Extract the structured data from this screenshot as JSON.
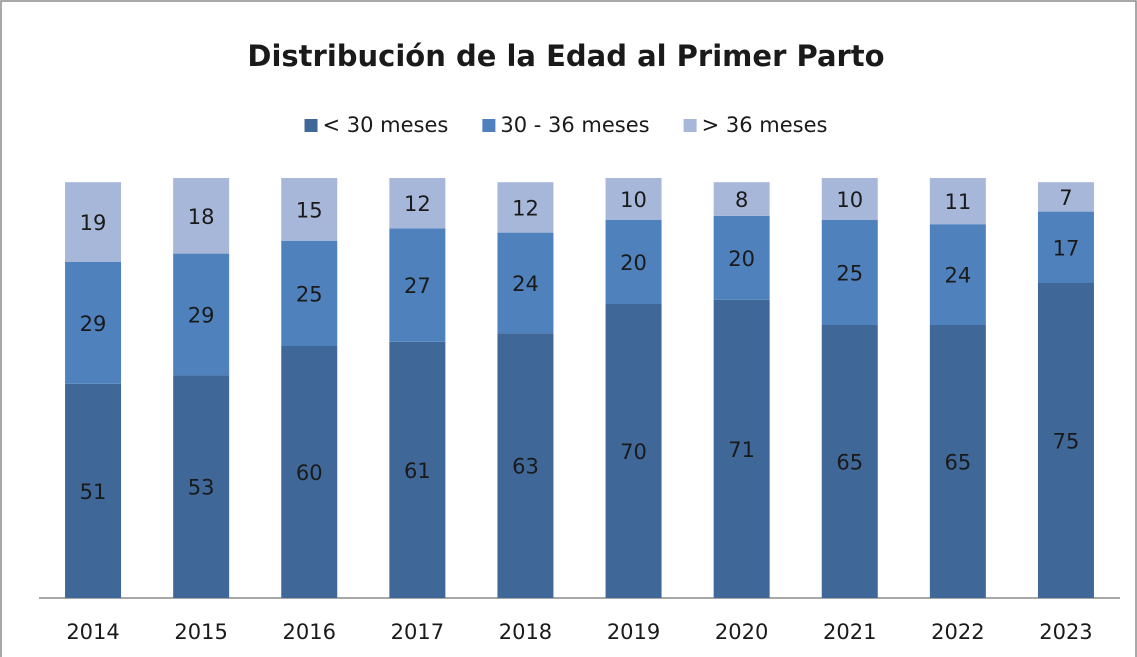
{
  "chart_data": {
    "type": "stacked_bar",
    "title": "Distribución de la Edad al Primer Parto",
    "categories": [
      "2014",
      "2015",
      "2016",
      "2017",
      "2018",
      "2019",
      "2020",
      "2021",
      "2022",
      "2023"
    ],
    "series": [
      {
        "name": "< 30 meses",
        "color": "#3f6797",
        "values": [
          51,
          53,
          60,
          61,
          63,
          70,
          71,
          65,
          65,
          75
        ]
      },
      {
        "name": "30 - 36 meses",
        "color": "#4f81bd",
        "values": [
          29,
          29,
          25,
          27,
          24,
          20,
          20,
          25,
          24,
          17
        ]
      },
      {
        "name": "> 36 meses",
        "color": "#a7b7d9",
        "values": [
          19,
          18,
          15,
          12,
          12,
          10,
          8,
          10,
          11,
          7
        ]
      }
    ],
    "ylim": [
      0,
      100
    ]
  }
}
